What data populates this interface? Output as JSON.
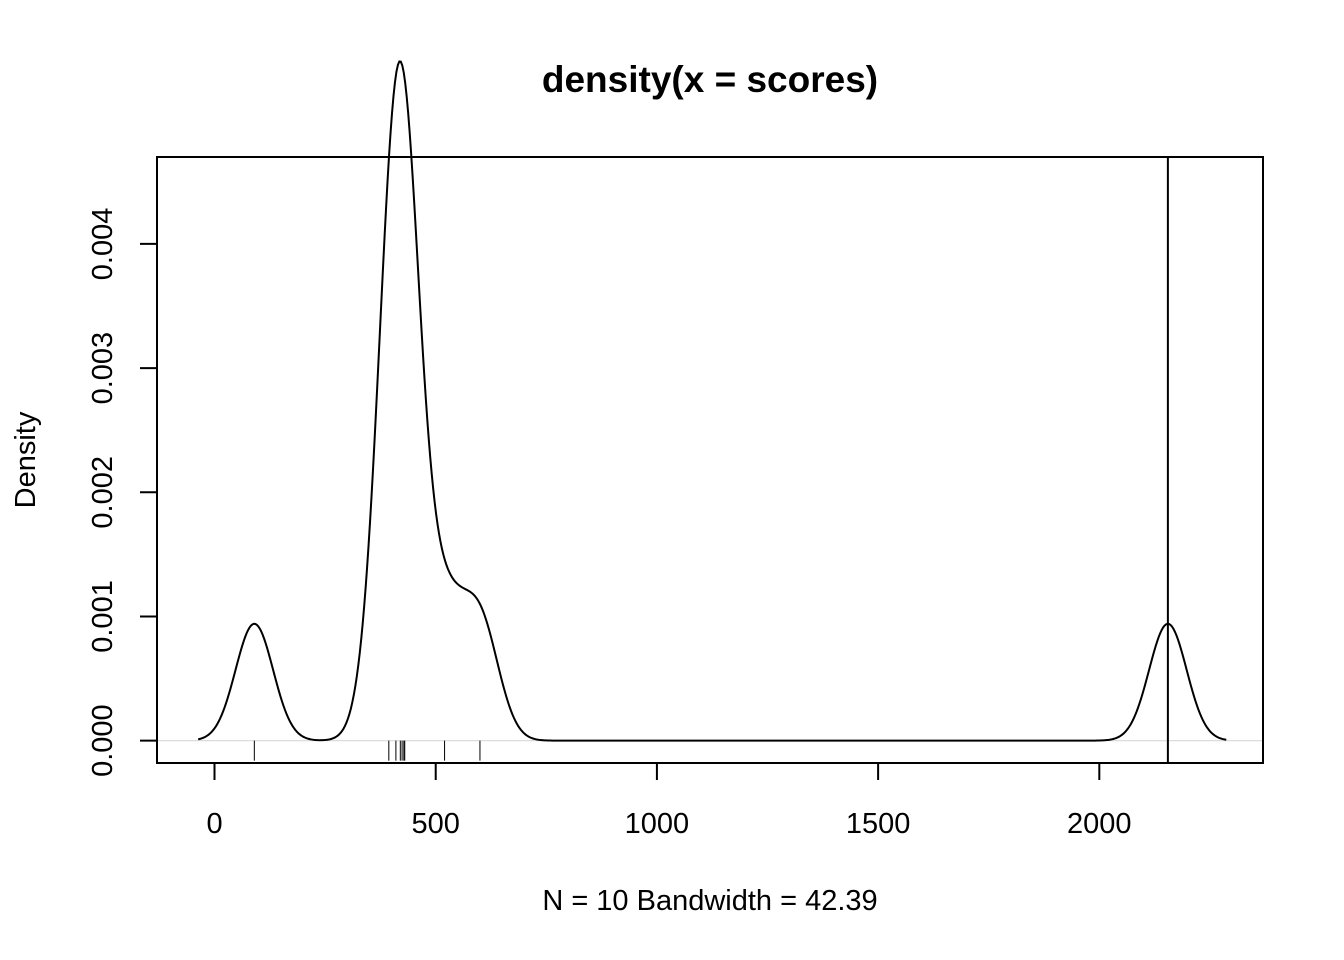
{
  "chart_data": {
    "type": "line",
    "title": "density(x = scores)",
    "xlabel": "N = 10   Bandwidth = 42.39",
    "ylabel": "Density",
    "xlim": [
      -130,
      2370
    ],
    "ylim": [
      -0.00018,
      0.0047
    ],
    "x_ticks": [
      0,
      500,
      1000,
      1500,
      2000
    ],
    "x_tick_labels": [
      "0",
      "500",
      "1000",
      "1500",
      "2000"
    ],
    "y_ticks": [
      0,
      0.001,
      0.002,
      0.003,
      0.004
    ],
    "y_tick_labels": [
      "0.000",
      "0.001",
      "0.002",
      "0.003",
      "0.004"
    ],
    "grid": false,
    "bandwidth": 42.39,
    "n": 10,
    "curve_x_range": [
      -37,
      2287
    ],
    "scores": [
      90,
      394,
      410,
      420,
      424,
      428,
      430,
      520,
      600,
      2155
    ],
    "rug": [
      90,
      394,
      410,
      420,
      424,
      428,
      430,
      520,
      600,
      2155
    ],
    "zero_line": 0,
    "vertical_line_x": 2155,
    "series": [
      {
        "color": "#000000"
      }
    ]
  }
}
